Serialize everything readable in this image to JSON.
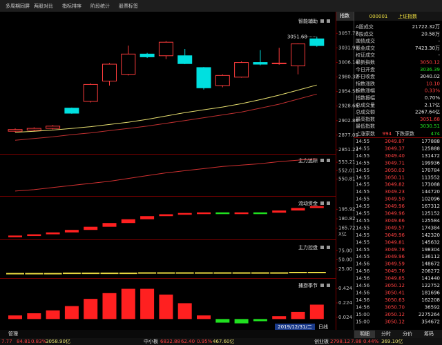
{
  "tabs": [
    "多周期同屏",
    "两股对比",
    "指标排序",
    "阶段统计",
    "股票标签"
  ],
  "chart_data": [
    {
      "type": "candlestick",
      "title": "智能辅助",
      "annotation": "3051.68",
      "up_color": "#ff3c3c",
      "down_color": "#00e0e0",
      "candles": {
        "open": [
          2884,
          2886,
          2889,
          2925,
          2937,
          2973,
          2985,
          3021,
          3018,
          3018,
          2997,
          2965,
          2980,
          3006,
          3004,
          3000,
          3048
        ],
        "high": [
          2889,
          2891,
          2895,
          2926,
          2969,
          3005,
          3036,
          3023,
          3044,
          3030,
          2998,
          2985,
          3008,
          3028,
          3032,
          3040,
          3051.68
        ],
        "low": [
          2882,
          2884,
          2887,
          2915,
          2935,
          2965,
          2983,
          3014,
          3012,
          3003,
          2958,
          2962,
          2979,
          3001,
          3002,
          2985,
          3034
        ],
        "close": [
          2887,
          2889,
          2893,
          2916,
          2967,
          3003,
          3021,
          3016,
          3042,
          3004,
          2961,
          2983,
          3006,
          3003,
          3005,
          3039,
          3036
        ]
      },
      "series": [
        {
          "color": "#e8e070",
          "values": [
            2882,
            2884,
            2886,
            2889,
            2892,
            2896,
            2900,
            2905,
            2911,
            2917,
            2922,
            2927,
            2933,
            2940,
            2948,
            2957,
            2966
          ]
        },
        {
          "color": "#c03030",
          "values": [
            2868,
            2871,
            2874,
            2878,
            2881,
            2885,
            2889,
            2893,
            2898,
            2903,
            2908,
            2913,
            2918,
            2925,
            2932,
            2941,
            2950
          ]
        }
      ],
      "ylim": [
        2845,
        3090
      ],
      "yticks": [
        3057.77,
        3031.95,
        3006.14,
        2980.32,
        {
          "value": 2954.5,
          "label": "2954.50"
        },
        2928.68,
        2902.86,
        2877.05,
        2851.23
      ]
    },
    {
      "type": "line",
      "title": "主力追踪",
      "series": [
        {
          "color": "#d03030",
          "values": [
            549.1,
            549.3,
            549.6,
            549.9,
            550.2,
            550.5,
            550.9,
            551.3,
            551.7,
            552.0,
            552.3,
            552.6,
            552.8,
            553.0,
            553.3,
            553.5,
            553.7
          ]
        }
      ],
      "ylim": [
        548.6,
        554.3
      ],
      "yticks": [
        553.21,
        552.01,
        550.81
      ]
    },
    {
      "type": "step-bar",
      "title": "流动资金",
      "unit": "X亿",
      "up_color": "#ff2020",
      "down_color": "#20e020",
      "values": [
        154,
        156,
        159,
        163,
        168,
        174,
        180,
        185,
        188,
        190,
        191,
        190.5,
        191,
        190.5,
        194,
        198,
        201
      ],
      "ylim": [
        150,
        215
      ],
      "yticks": [
        195.92,
        180.82,
        165.72
      ]
    },
    {
      "type": "level",
      "title": "主力控盘",
      "color": "#e8d840",
      "values": [
        12,
        12,
        12,
        13,
        13,
        13,
        13,
        14,
        14,
        14,
        14,
        14,
        14,
        14,
        14,
        15,
        15
      ],
      "ylim": [
        0,
        100
      ],
      "yticks": [
        {
          "value": 75,
          "label": "75.00"
        },
        {
          "value": 50,
          "label": "50.00"
        },
        {
          "value": 25,
          "label": "25.00"
        }
      ]
    },
    {
      "type": "bar",
      "title": "捕捞季节",
      "up_color": "#ff2020",
      "down_color": "#20e020",
      "values": [
        0.05,
        0.08,
        0.12,
        0.18,
        0.28,
        0.36,
        0.42,
        0.42,
        0.34,
        0.22,
        0.05,
        -0.05,
        -0.06,
        -0.03,
        0.04,
        0.1,
        0.2
      ],
      "ylim": [
        -0.15,
        0.55
      ],
      "yticks": [
        0.424,
        0.224,
        0.024
      ]
    }
  ],
  "quote": {
    "button": "指数",
    "code": "000001",
    "name": "上证指数",
    "rows": [
      {
        "label": "A股成交",
        "value": "21722.32万",
        "color": "#e8e8e8"
      },
      {
        "label": "B股成交",
        "value": "20.58万",
        "color": "#e8e8e8"
      },
      {
        "label": "国债成交",
        "value": "-",
        "color": "#e8e8e8"
      },
      {
        "label": "基金成交",
        "value": "7423.30万",
        "color": "#e8e8e8"
      },
      {
        "label": "权证成交",
        "value": "-",
        "color": "#e8e8e8"
      },
      {
        "label": "最新指数",
        "value": "3050.12",
        "color": "#ff4040"
      },
      {
        "label": "今日开盘",
        "value": "3036.39",
        "color": "#20e020"
      },
      {
        "label": "昨日收盘",
        "value": "3040.02",
        "color": "#e8e8e8"
      },
      {
        "label": "指数涨跌",
        "value": "10.10",
        "color": "#ff4040"
      },
      {
        "label": "指数涨幅",
        "value": "0.33%",
        "color": "#ff4040"
      },
      {
        "label": "指数振幅",
        "value": "0.70%",
        "color": "#e8e8e8"
      },
      {
        "label": "总成交量",
        "value": "2.17亿",
        "color": "#e8e8e8"
      },
      {
        "label": "总成交额",
        "value": "2267.64亿",
        "color": "#e8e8e8"
      },
      {
        "label": "最高指数",
        "value": "3051.68",
        "color": "#ff4040"
      },
      {
        "label": "最低指数",
        "value": "3030.51",
        "color": "#20e020"
      }
    ],
    "breadth": [
      {
        "label": "上涨家数",
        "value": "994",
        "color": "#ff4040"
      },
      {
        "label": "下跌家数",
        "value": "474",
        "color": "#20e020"
      }
    ]
  },
  "trades": [
    [
      "14:55",
      "3049.87",
      "177888"
    ],
    [
      "14:55",
      "3049.37",
      "125888"
    ],
    [
      "14:55",
      "3049.40",
      "131472"
    ],
    [
      "14:55",
      "3049.71",
      "199936"
    ],
    [
      "14:55",
      "3050.03",
      "170784"
    ],
    [
      "14:55",
      "3050.11",
      "113552"
    ],
    [
      "14:55",
      "3049.82",
      "173088"
    ],
    [
      "14:55",
      "3049.23",
      "144720"
    ],
    [
      "14:55",
      "3049.50",
      "102096"
    ],
    [
      "14:55",
      "3049.96",
      "167312"
    ],
    [
      "14:55",
      "3049.96",
      "125152"
    ],
    [
      "14:55",
      "3049.66",
      "125584"
    ],
    [
      "14:55",
      "3049.57",
      "174384"
    ],
    [
      "14:55",
      "3049.96",
      "142320"
    ],
    [
      "14:55",
      "3049.81",
      "145632"
    ],
    [
      "14:55",
      "3049.78",
      "198304"
    ],
    [
      "14:55",
      "3049.96",
      "136112"
    ],
    [
      "14:56",
      "3049.59",
      "148672"
    ],
    [
      "14:56",
      "3049.76",
      "206272"
    ],
    [
      "14:56",
      "3049.85",
      "141440"
    ],
    [
      "14:56",
      "3050.12",
      "122752"
    ],
    [
      "14:56",
      "3050.41",
      "181696"
    ],
    [
      "14:56",
      "3050.63",
      "162208"
    ],
    [
      "14:56",
      "3050.70",
      "36592"
    ],
    [
      "15:00",
      "3050.12",
      "2275264"
    ],
    [
      "15:00",
      "3050.12",
      "354672"
    ]
  ],
  "trade_tabs": [
    "明细",
    "分时",
    "分价",
    "筹码"
  ],
  "footer": {
    "manage": "管理",
    "date": "2019/12/31/二",
    "period": "日线"
  },
  "ticker": [
    {
      "text": "7.77",
      "color": "#ff4040"
    },
    {
      "text": "84.81",
      "color": "#ff4040"
    },
    {
      "text": "0.83%",
      "color": "#ff4040"
    },
    {
      "text": "3058.90亿",
      "color": "#e8e070"
    },
    {
      "text": "中小板",
      "color": "#e8e8e8"
    },
    {
      "text": "6832.88",
      "color": "#ff4040"
    },
    {
      "text": "62.40",
      "color": "#ff4040"
    },
    {
      "text": "0.95%",
      "color": "#ff4040"
    },
    {
      "text": "467.60亿",
      "color": "#e8e070"
    },
    {
      "text": "创业板",
      "color": "#e8e8e8"
    },
    {
      "text": "2798.12",
      "color": "#ff4040"
    },
    {
      "text": "7.88",
      "color": "#ff4040"
    },
    {
      "text": "0.44%",
      "color": "#ff4040"
    },
    {
      "text": "369.10亿",
      "color": "#e8e070"
    }
  ]
}
